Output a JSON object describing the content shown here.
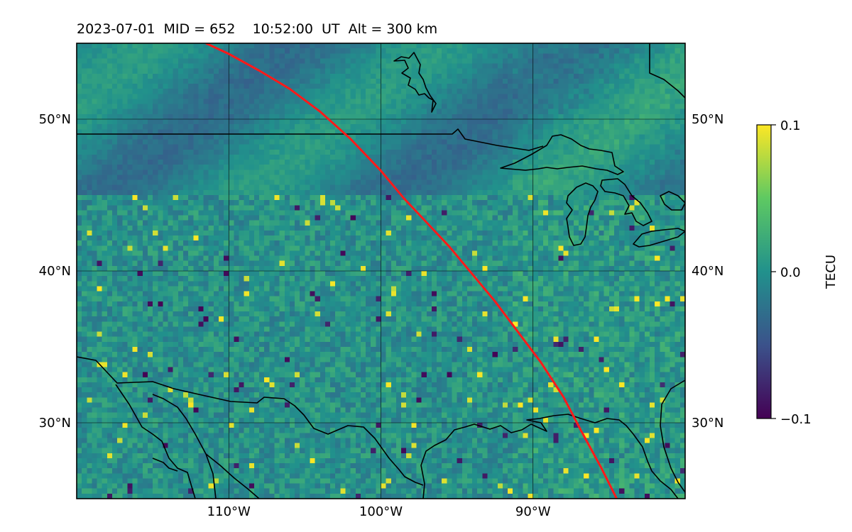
{
  "title": {
    "date": "2023-07-01",
    "mid_text": "MID = 652",
    "time_text": "10:52:00  UT",
    "alt_text": "Alt = 300 km"
  },
  "map": {
    "lon_range": [
      -120,
      -80
    ],
    "lat_range": [
      25,
      55
    ],
    "lat_ticks": [
      {
        "value": 30,
        "label": "30°N"
      },
      {
        "value": 40,
        "label": "40°N"
      },
      {
        "value": 50,
        "label": "50°N"
      }
    ],
    "lon_ticks": [
      {
        "value": -110,
        "label": "110°W"
      },
      {
        "value": -100,
        "label": "100°W"
      },
      {
        "value": -90,
        "label": "90°W"
      }
    ],
    "gridlines": true,
    "colormap": "viridis",
    "track_color": "#ff1a1a",
    "terminator_track": [
      [
        -111.5,
        55.0
      ],
      [
        -110.0,
        54.3
      ],
      [
        -108.0,
        53.2
      ],
      [
        -106.0,
        52.0
      ],
      [
        -104.0,
        50.5
      ],
      [
        -102.0,
        48.7
      ],
      [
        -100.0,
        46.6
      ],
      [
        -98.5,
        44.8
      ],
      [
        -97.0,
        43.2
      ],
      [
        -95.5,
        41.6
      ],
      [
        -94.0,
        39.8
      ],
      [
        -92.5,
        38.0
      ],
      [
        -91.0,
        36.0
      ],
      [
        -89.5,
        34.0
      ],
      [
        -88.0,
        31.7
      ],
      [
        -86.8,
        29.4
      ],
      [
        -85.5,
        27.0
      ],
      [
        -84.5,
        25.0
      ]
    ]
  },
  "colorbar": {
    "label": "TECU",
    "min": -0.1,
    "max": 0.1,
    "ticks": [
      {
        "value": 0.1,
        "label": "0.1"
      },
      {
        "value": 0.0,
        "label": "0.0"
      },
      {
        "value": -0.1,
        "label": "−0.1"
      }
    ]
  }
}
